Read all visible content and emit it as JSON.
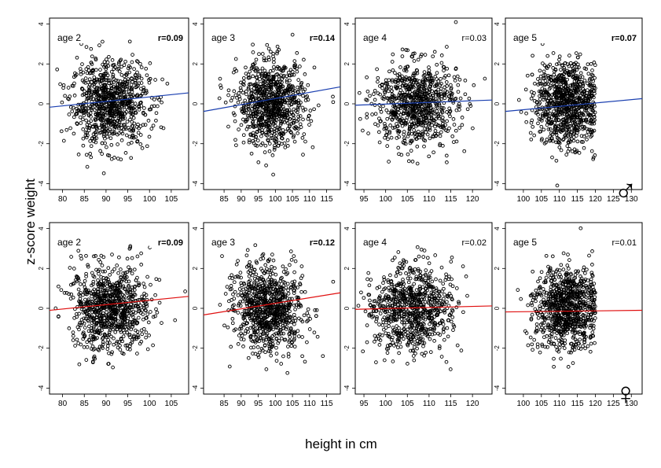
{
  "figure": {
    "ylabel": "z-score weight",
    "xlabel": "height in cm",
    "male_symbol": "♂",
    "female_symbol": "♀"
  },
  "colors": {
    "male_line": "#1a3fb0",
    "female_line": "#e01010",
    "points": "#000000"
  },
  "chart_data": [
    {
      "type": "scatter",
      "row": "male",
      "age_label": "age 2",
      "r_label": "r=0.09",
      "r_bold": true,
      "xlim": [
        77,
        109
      ],
      "ylim": [
        -4.3,
        4.3
      ],
      "xticks": [
        80,
        85,
        90,
        95,
        100,
        105
      ],
      "yticks": [
        -4,
        -2,
        0,
        2,
        4
      ],
      "x_mean": 91,
      "x_sd": 4.5,
      "n": 850,
      "regression": {
        "x": [
          77,
          109
        ],
        "y": [
          -0.17,
          0.55
        ]
      }
    },
    {
      "type": "scatter",
      "row": "male",
      "age_label": "age 3",
      "r_label": "r=0.14",
      "r_bold": true,
      "xlim": [
        79,
        119
      ],
      "ylim": [
        -4.3,
        4.3
      ],
      "xticks": [
        85,
        90,
        95,
        100,
        105,
        110,
        115
      ],
      "yticks": [
        -4,
        -2,
        0,
        2,
        4
      ],
      "x_mean": 99,
      "x_sd": 5,
      "n": 850,
      "regression": {
        "x": [
          79,
          119
        ],
        "y": [
          -0.38,
          0.85
        ]
      }
    },
    {
      "type": "scatter",
      "row": "male",
      "age_label": "age 4",
      "r_label": "r=0.03",
      "r_bold": false,
      "xlim": [
        93,
        124.5
      ],
      "ylim": [
        -4.3,
        4.3
      ],
      "xticks": [
        95,
        100,
        105,
        110,
        115,
        120
      ],
      "yticks": [
        -4,
        -2,
        0,
        2,
        4
      ],
      "x_mean": 107,
      "x_sd": 4.8,
      "n": 800,
      "regression": {
        "x": [
          93,
          124.5
        ],
        "y": [
          -0.07,
          0.19
        ]
      }
    },
    {
      "type": "scatter",
      "row": "male",
      "age_label": "age 5",
      "r_label": "r=0.07",
      "r_bold": true,
      "xlim": [
        95,
        133
      ],
      "ylim": [
        -4.3,
        4.3
      ],
      "xticks": [
        100,
        105,
        110,
        115,
        120,
        125,
        130
      ],
      "yticks": [
        -4,
        -2,
        0,
        2,
        4
      ],
      "x_mean": 112,
      "x_sd": 4.5,
      "x_max": 120,
      "n": 850,
      "regression": {
        "x": [
          95,
          133
        ],
        "y": [
          -0.38,
          0.26
        ]
      }
    },
    {
      "type": "scatter",
      "row": "female",
      "age_label": "age 2",
      "r_label": "r=0.09",
      "r_bold": true,
      "xlim": [
        77,
        109
      ],
      "ylim": [
        -4.3,
        4.3
      ],
      "xticks": [
        80,
        85,
        90,
        95,
        100,
        105
      ],
      "yticks": [
        -4,
        -2,
        0,
        2,
        4
      ],
      "x_mean": 91,
      "x_sd": 4.5,
      "n": 850,
      "regression": {
        "x": [
          77,
          109
        ],
        "y": [
          -0.1,
          0.6
        ]
      }
    },
    {
      "type": "scatter",
      "row": "female",
      "age_label": "age 3",
      "r_label": "r=0.12",
      "r_bold": true,
      "xlim": [
        79,
        119
      ],
      "ylim": [
        -4.3,
        4.3
      ],
      "xticks": [
        85,
        90,
        95,
        100,
        105,
        110,
        115
      ],
      "yticks": [
        -4,
        -2,
        0,
        2,
        4
      ],
      "x_mean": 98,
      "x_sd": 5,
      "n": 850,
      "regression": {
        "x": [
          79,
          119
        ],
        "y": [
          -0.33,
          0.78
        ]
      }
    },
    {
      "type": "scatter",
      "row": "female",
      "age_label": "age 4",
      "r_label": "r=0.02",
      "r_bold": false,
      "xlim": [
        93,
        124.5
      ],
      "ylim": [
        -4.3,
        4.3
      ],
      "xticks": [
        95,
        100,
        105,
        110,
        115,
        120
      ],
      "yticks": [
        -4,
        -2,
        0,
        2,
        4
      ],
      "x_mean": 106,
      "x_sd": 4.8,
      "n": 800,
      "regression": {
        "x": [
          93,
          124.5
        ],
        "y": [
          -0.05,
          0.12
        ]
      }
    },
    {
      "type": "scatter",
      "row": "female",
      "age_label": "age 5",
      "r_label": "r=0.01",
      "r_bold": false,
      "xlim": [
        95,
        133
      ],
      "ylim": [
        -4.3,
        4.3
      ],
      "xticks": [
        100,
        105,
        110,
        115,
        120,
        125,
        130
      ],
      "yticks": [
        -4,
        -2,
        0,
        2,
        4
      ],
      "x_mean": 112,
      "x_sd": 4.5,
      "x_max": 120,
      "n": 850,
      "regression": {
        "x": [
          95,
          133
        ],
        "y": [
          -0.18,
          -0.1
        ]
      }
    }
  ]
}
